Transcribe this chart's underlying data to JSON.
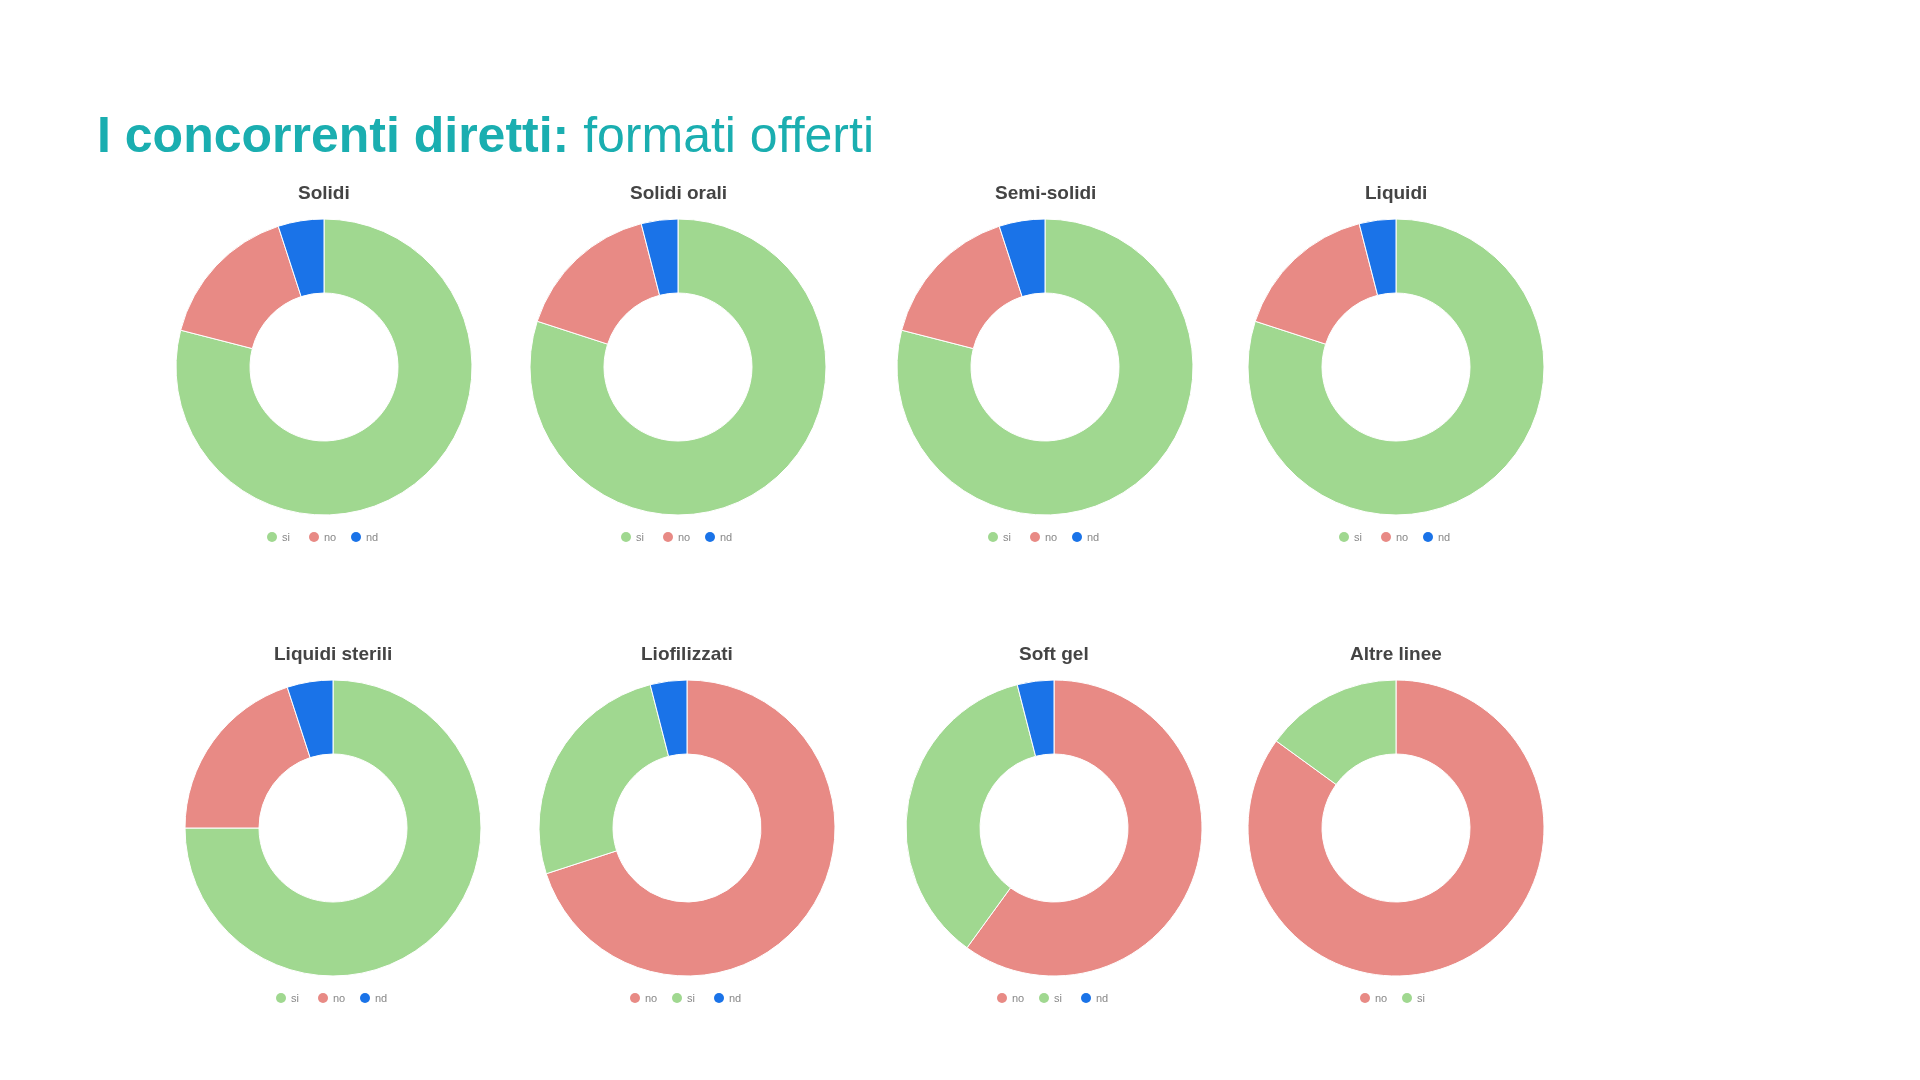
{
  "chart_data": [
    {
      "type": "donut",
      "title": "Solidi",
      "annotations": [
        "I concorrenti diretti: formati offerti"
      ],
      "categories": [
        "si",
        "no",
        "nd"
      ],
      "values": [
        79,
        16,
        5
      ],
      "colors": [
        "#a0d890",
        "#e88a85",
        "#1a73e8"
      ],
      "legend": "bottom"
    },
    {
      "type": "donut",
      "title": "Solidi orali",
      "categories": [
        "si",
        "no",
        "nd"
      ],
      "values": [
        80,
        16,
        4
      ],
      "colors": [
        "#a0d890",
        "#e88a85",
        "#1a73e8"
      ],
      "legend": "bottom"
    },
    {
      "type": "donut",
      "title": "Semi-solidi",
      "categories": [
        "si",
        "no",
        "nd"
      ],
      "values": [
        79,
        16,
        5
      ],
      "colors": [
        "#a0d890",
        "#e88a85",
        "#1a73e8"
      ],
      "legend": "bottom"
    },
    {
      "type": "donut",
      "title": "Liquidi",
      "categories": [
        "si",
        "no",
        "nd"
      ],
      "values": [
        80,
        16,
        4
      ],
      "colors": [
        "#a0d890",
        "#e88a85",
        "#1a73e8"
      ],
      "legend": "bottom"
    },
    {
      "type": "donut",
      "title": "Liquidi sterili",
      "categories": [
        "si",
        "no",
        "nd"
      ],
      "values": [
        75,
        20,
        5
      ],
      "colors": [
        "#a0d890",
        "#e88a85",
        "#1a73e8"
      ],
      "legend": "bottom"
    },
    {
      "type": "donut",
      "title": "Liofilizzati",
      "categories": [
        "no",
        "si",
        "nd"
      ],
      "values": [
        70,
        26,
        4
      ],
      "colors": [
        "#e88a85",
        "#a0d890",
        "#1a73e8"
      ],
      "legend": "bottom"
    },
    {
      "type": "donut",
      "title": "Soft gel",
      "categories": [
        "no",
        "si",
        "nd"
      ],
      "values": [
        60,
        36,
        4
      ],
      "colors": [
        "#e88a85",
        "#a0d890",
        "#1a73e8"
      ],
      "legend": "bottom"
    },
    {
      "type": "donut",
      "title": "Altre linee",
      "categories": [
        "no",
        "si"
      ],
      "values": [
        85,
        15
      ],
      "colors": [
        "#e88a85",
        "#a0d890"
      ],
      "legend": "bottom"
    }
  ]
}
